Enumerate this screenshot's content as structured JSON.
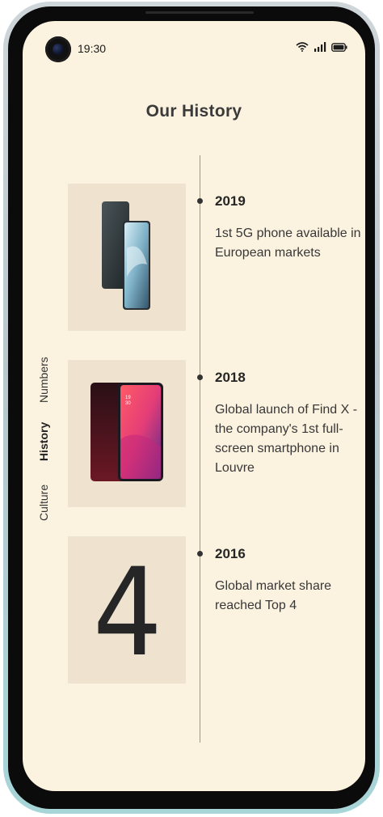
{
  "status_bar": {
    "time": "19:30",
    "icons": [
      "wifi-icon",
      "signal-icon",
      "battery-icon"
    ]
  },
  "header": {
    "title": "Our History"
  },
  "side_tabs": [
    {
      "label": "Culture",
      "active": false
    },
    {
      "label": "History",
      "active": true
    },
    {
      "label": "Numbers",
      "active": false
    }
  ],
  "timeline": [
    {
      "year": "2019",
      "description": "1st 5G phone available in European markets",
      "image": "smartphone-pair-image"
    },
    {
      "year": "2018",
      "description": "Global launch of Find X - the company's 1st full-screen smartphone in Louvre",
      "image": "fullscreen-smartphone-image"
    },
    {
      "year": "2016",
      "description": "Global market share reached Top 4",
      "image_text": "4"
    }
  ],
  "colors": {
    "screen_background": "#fbf2df",
    "card_background": "#efe3cf",
    "timeline_line": "#9b958b"
  }
}
